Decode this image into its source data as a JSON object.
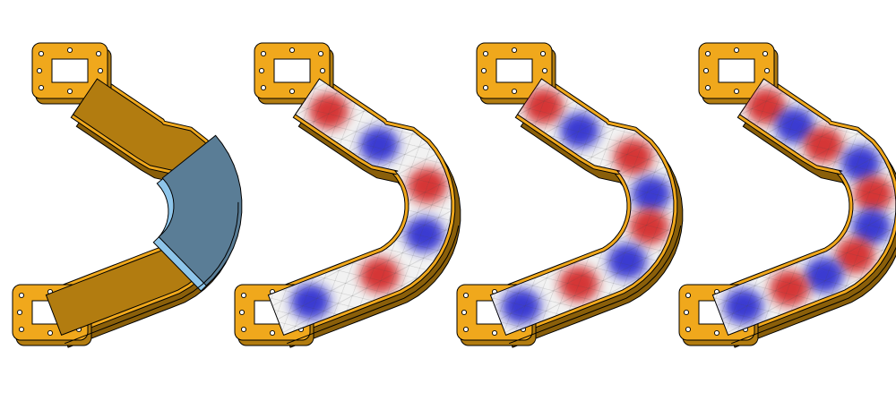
{
  "figure": {
    "panels": [
      {
        "id": "geometry",
        "kind": "geometry",
        "nodes": 0
      },
      {
        "id": "mode-1",
        "kind": "field",
        "nodes": 3
      },
      {
        "id": "mode-2",
        "kind": "field",
        "nodes": 4
      },
      {
        "id": "mode-3",
        "kind": "field",
        "nodes": 5
      }
    ],
    "colors": {
      "metal": "#F0A81C",
      "metal_dark": "#B27C10",
      "metal_shadow": "#8A5F0A",
      "dielectric": "#5A7D96",
      "dielectric_light": "#8EC5EA",
      "field_positive": "#D01818",
      "field_negative": "#1A1ACC",
      "field_neutral": "#F2F2F2",
      "outline": "#000000"
    }
  }
}
